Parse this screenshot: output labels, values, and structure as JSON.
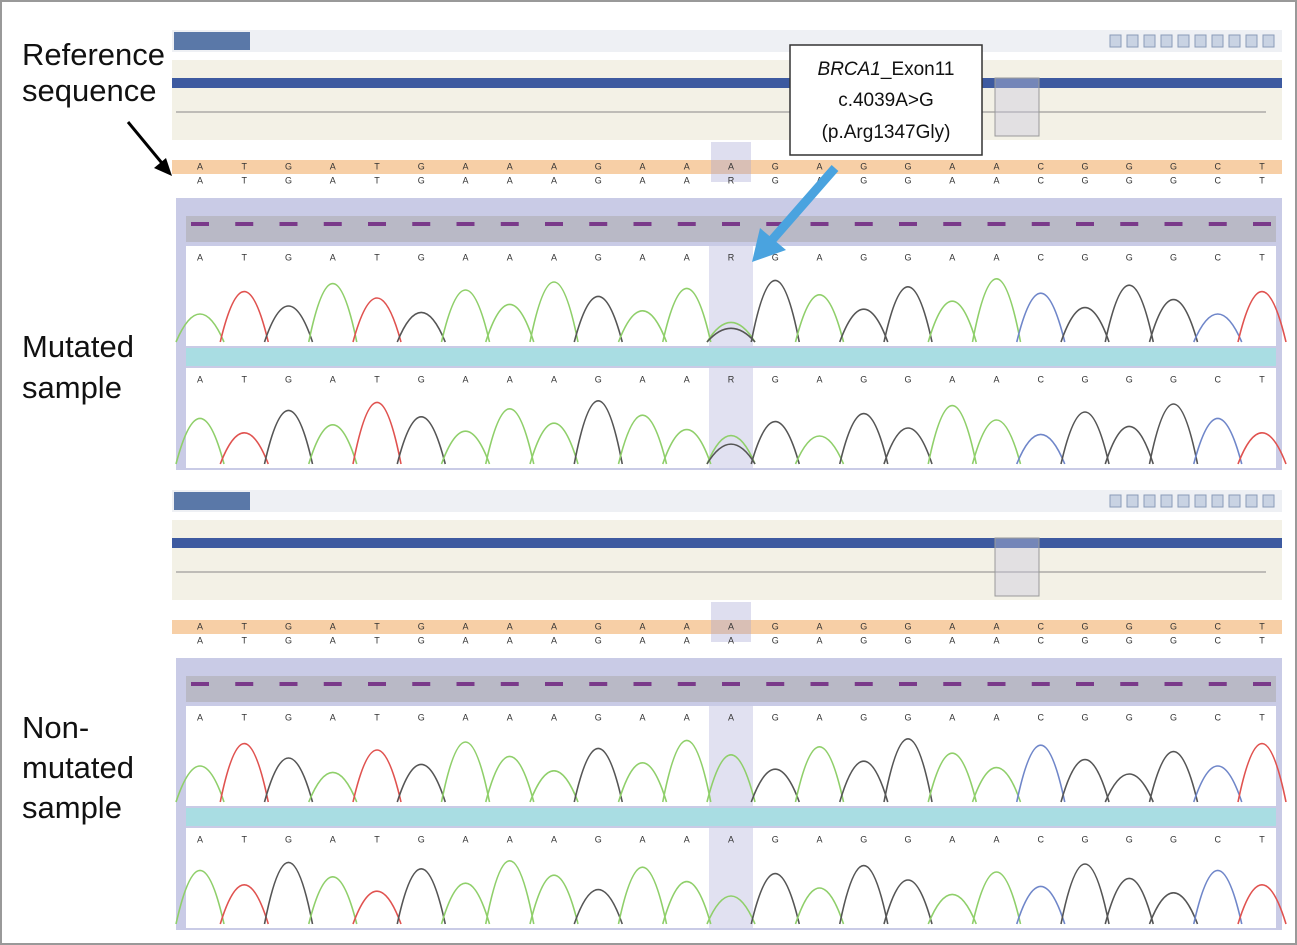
{
  "labels": {
    "reference": [
      "Reference",
      "sequence"
    ],
    "mutated": [
      "Mutated",
      "sample"
    ],
    "nonmutated": [
      "Non-",
      "mutated",
      "sample"
    ]
  },
  "annotation": {
    "gene": "BRCA1",
    "exon": "_Exon11",
    "lines": [
      "c.4039A>G",
      "(p.Arg1347Gly)"
    ]
  },
  "panels": [
    {
      "reference": [
        "A",
        "T",
        "G",
        "A",
        "T",
        "G",
        "A",
        "A",
        "A",
        "G",
        "A",
        "A",
        "A",
        "G",
        "A",
        "G",
        "G",
        "A",
        "A",
        "C",
        "G",
        "G",
        "G",
        "C",
        "T"
      ],
      "sample": [
        "A",
        "T",
        "G",
        "A",
        "T",
        "G",
        "A",
        "A",
        "A",
        "G",
        "A",
        "A",
        "R",
        "G",
        "A",
        "G",
        "G",
        "A",
        "A",
        "C",
        "G",
        "G",
        "G",
        "C",
        "T"
      ]
    },
    {
      "reference": [
        "A",
        "T",
        "G",
        "A",
        "T",
        "G",
        "A",
        "A",
        "A",
        "G",
        "A",
        "A",
        "A",
        "G",
        "A",
        "G",
        "G",
        "A",
        "A",
        "C",
        "G",
        "G",
        "G",
        "C",
        "T"
      ],
      "sample": [
        "A",
        "T",
        "G",
        "A",
        "T",
        "G",
        "A",
        "A",
        "A",
        "G",
        "A",
        "A",
        "A",
        "G",
        "A",
        "G",
        "G",
        "A",
        "A",
        "C",
        "G",
        "G",
        "G",
        "C",
        "T"
      ]
    }
  ]
}
